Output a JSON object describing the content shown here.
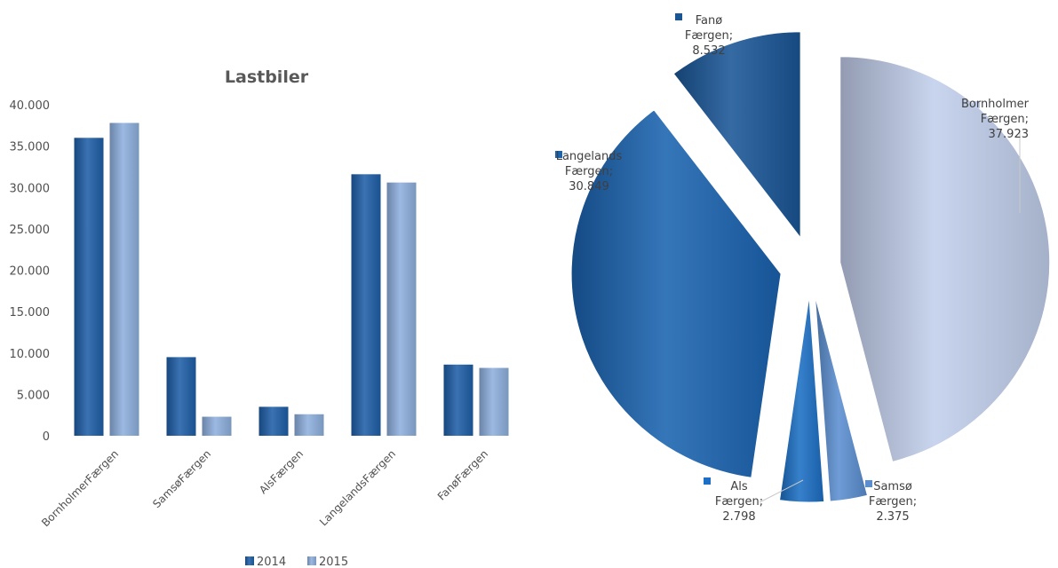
{
  "chart_data": [
    {
      "type": "bar",
      "title": "Lastbiler",
      "categories": [
        "BornholmerFærgen",
        "SamsøFærgen",
        "AlsFærgen",
        "LangelandsFærgen",
        "FanøFærgen"
      ],
      "series": [
        {
          "name": "2014",
          "values": [
            36000,
            9500,
            3500,
            31600,
            8600
          ],
          "color": "#1F5FA8"
        },
        {
          "name": "2015",
          "values": [
            37800,
            2300,
            2600,
            30600,
            8200
          ],
          "color": "#8EB0DE"
        }
      ],
      "ylim": [
        0,
        40000
      ],
      "yticks": [
        0,
        5000,
        10000,
        15000,
        20000,
        25000,
        30000,
        35000,
        40000
      ],
      "ytick_labels": [
        "0",
        "5.000",
        "10.000",
        "15.000",
        "20.000",
        "25.000",
        "30.000",
        "35.000",
        "40.000"
      ],
      "legend_position": "bottom",
      "grid": false
    },
    {
      "type": "pie",
      "exploded": true,
      "slices": [
        {
          "label_line1": "Bornholmer",
          "label_line2": "Færgen;",
          "value_label": "37.923",
          "value": 37923,
          "color": "#C2CFEC",
          "legend_square": true
        },
        {
          "label_line1": "Samsø",
          "label_line2": "Færgen;",
          "value_label": "2.375",
          "value": 2375,
          "color": "#5B8ED0",
          "legend_square": true
        },
        {
          "label_line1": "Als",
          "label_line2": "Færgen;",
          "value_label": "2.798",
          "value": 2798,
          "color": "#1C6FC4",
          "legend_square": true
        },
        {
          "label_line1": "Langelands",
          "label_line2": "Færgen;",
          "value_label": "30.849",
          "value": 30849,
          "color": "#1A63B0",
          "legend_square": true
        },
        {
          "label_line1": "Fanø",
          "label_line2": "Færgen;",
          "value_label": "8.532",
          "value": 8532,
          "color": "#1A5696",
          "legend_square": true
        }
      ]
    }
  ]
}
